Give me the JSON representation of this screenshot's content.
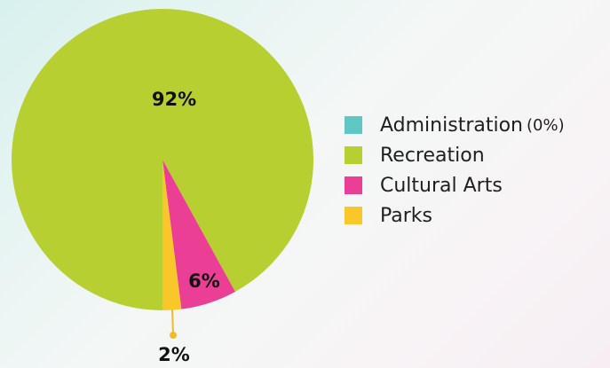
{
  "chart_data": {
    "type": "pie",
    "categories": [
      "Administration",
      "Recreation",
      "Cultural Arts",
      "Parks"
    ],
    "values": [
      0,
      92,
      6,
      2
    ],
    "value_labels": [
      "",
      "92%",
      "6%",
      "2%"
    ],
    "legend": {
      "placement": "right",
      "entries": [
        {
          "name": "Administration",
          "note": "(0%)"
        },
        {
          "name": "Recreation",
          "note": ""
        },
        {
          "name": "Cultural Arts",
          "note": ""
        },
        {
          "name": "Parks",
          "note": ""
        }
      ]
    },
    "colors": [
      "#5fc8c4",
      "#b8cf32",
      "#ea3f94",
      "#f9c72a"
    ],
    "leader_color": "#f4b928",
    "label_color": "#111111"
  }
}
